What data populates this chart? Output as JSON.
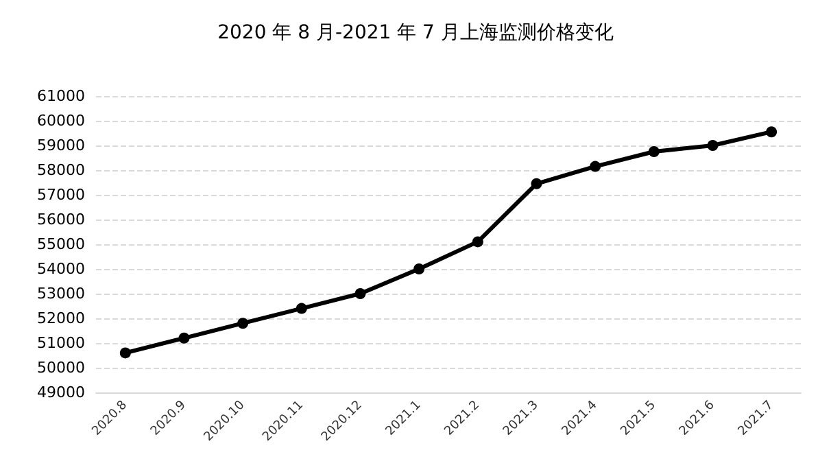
{
  "chart_data": {
    "type": "line",
    "title": "2020 年 8 月-2021 年 7 月上海监测价格变化",
    "categories": [
      "2020.8",
      "2020.9",
      "2020.10",
      "2020.11",
      "2020.12",
      "2021.1",
      "2021.2",
      "2021.3",
      "2021.4",
      "2021.5",
      "2021.6",
      "2021.7"
    ],
    "series": [
      {
        "color": "#000000",
        "values": [
          50600,
          51200,
          51800,
          52400,
          53000,
          54000,
          55100,
          57450,
          58150,
          58750,
          59000,
          59550
        ]
      }
    ],
    "ylim": [
      49000,
      61000
    ],
    "yticks": [
      49000,
      50000,
      51000,
      52000,
      53000,
      54000,
      55000,
      56000,
      57000,
      58000,
      59000,
      60000,
      61000
    ],
    "grid": "y",
    "marker": "circle",
    "line_style": "solid"
  }
}
